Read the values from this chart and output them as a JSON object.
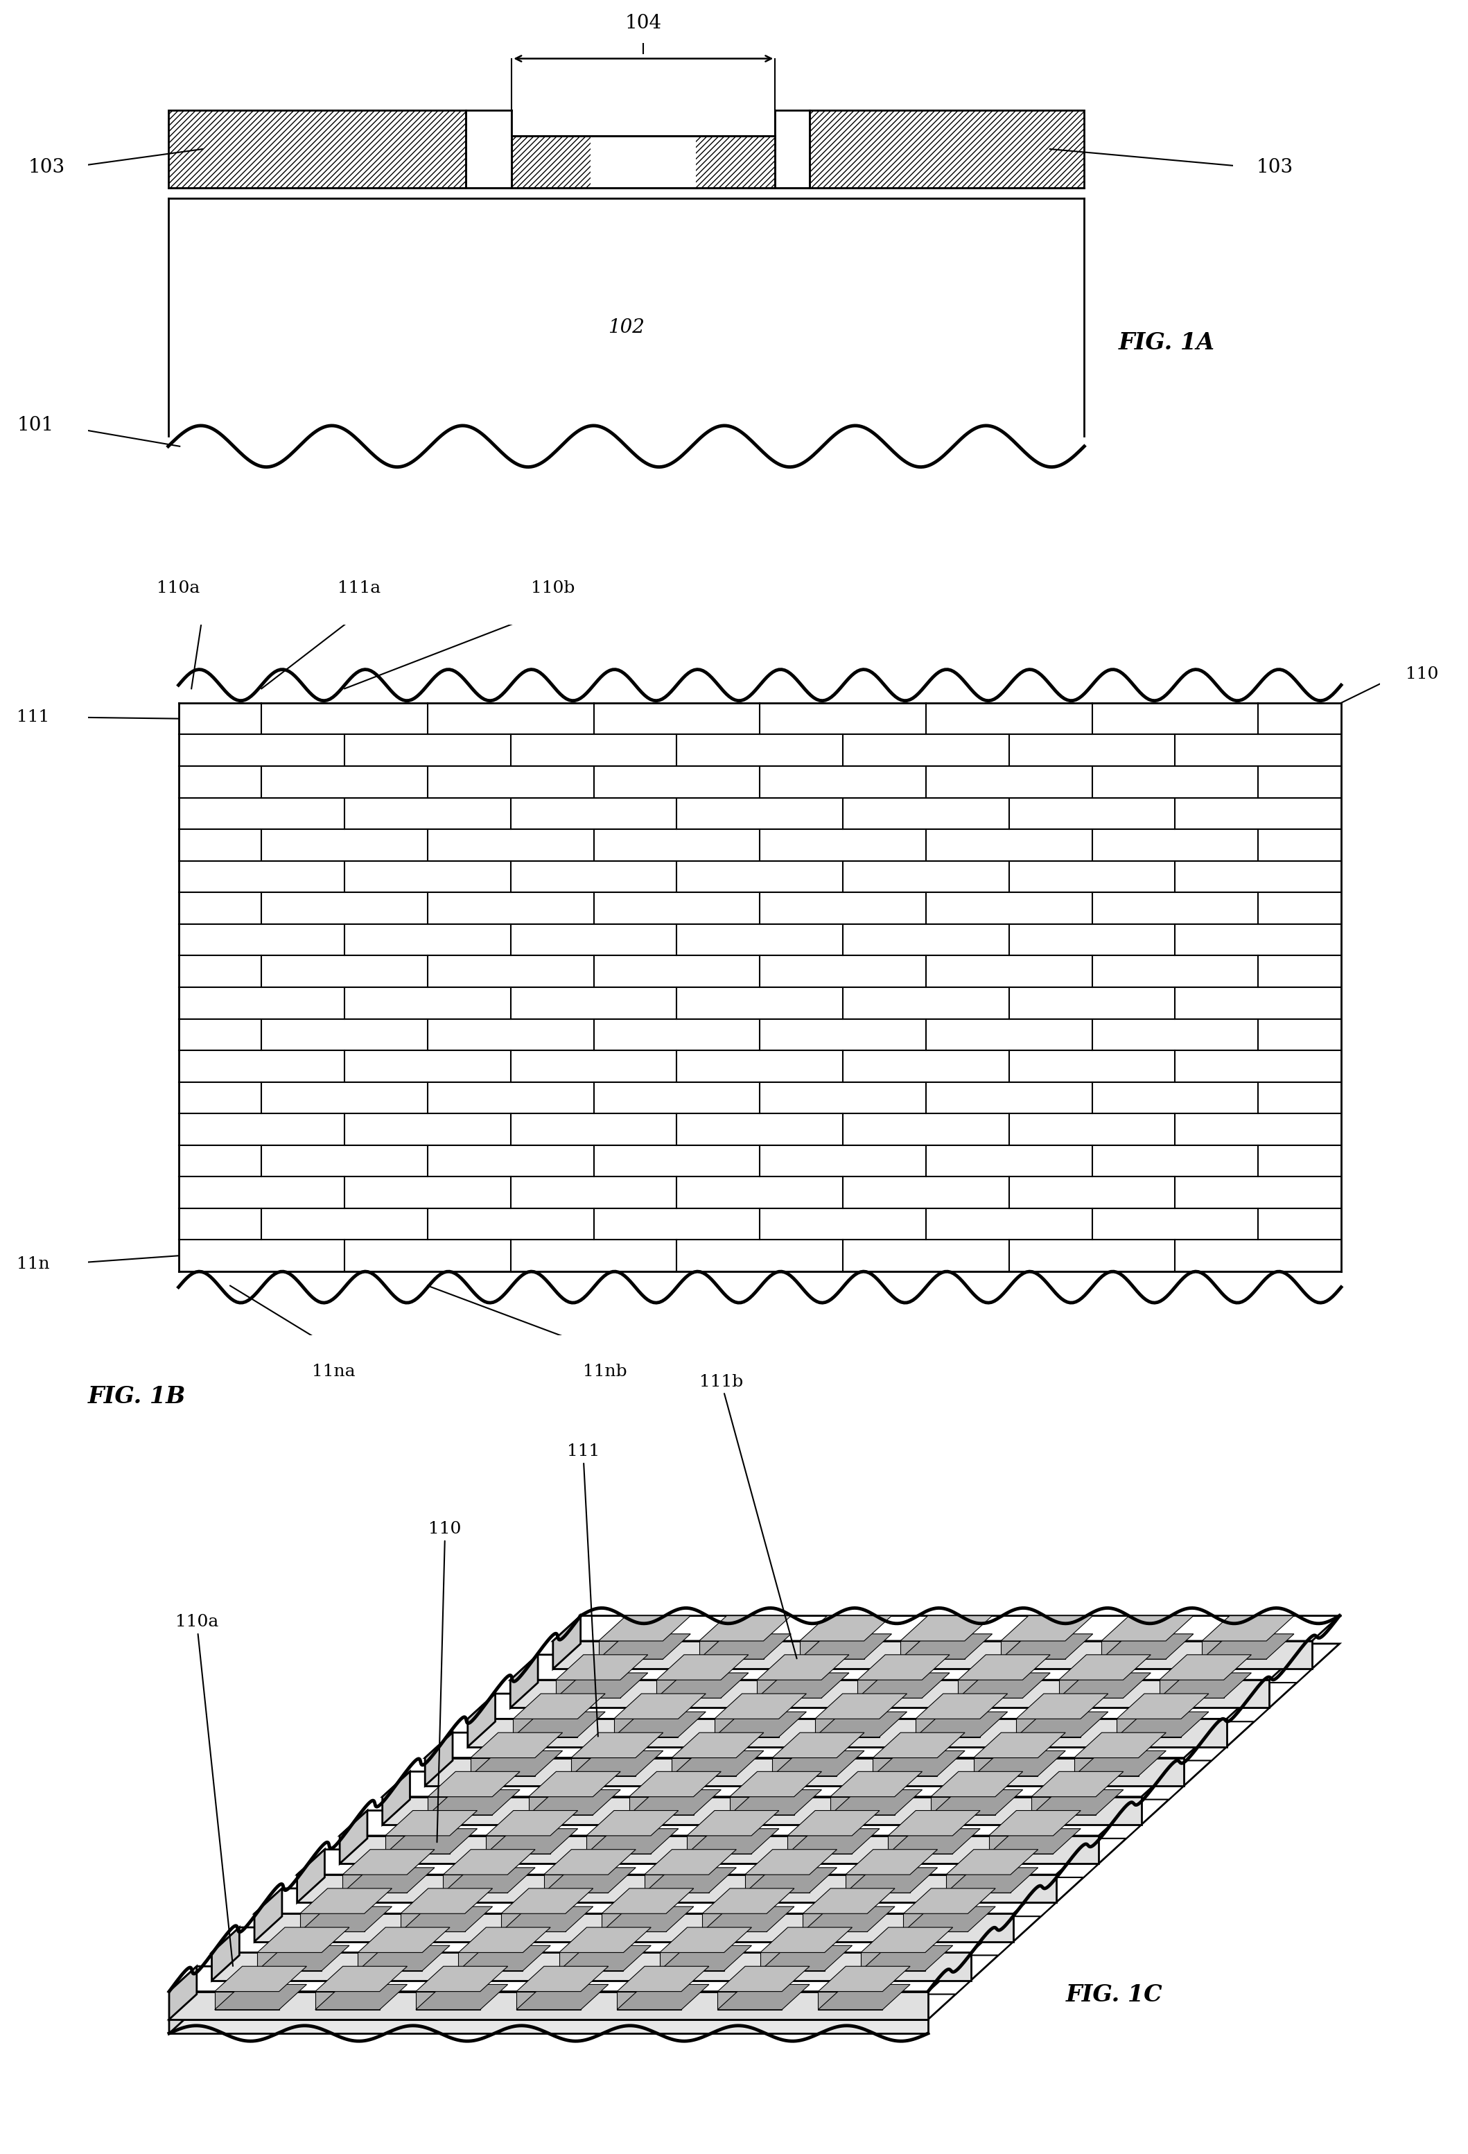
{
  "bg_color": "#ffffff",
  "line_color": "#000000",
  "fig1a_label": "FIG. 1A",
  "fig1b_label": "FIG. 1B",
  "fig1c_label": "FIG. 1C",
  "brick_rows": 18,
  "brick_cols": 7
}
